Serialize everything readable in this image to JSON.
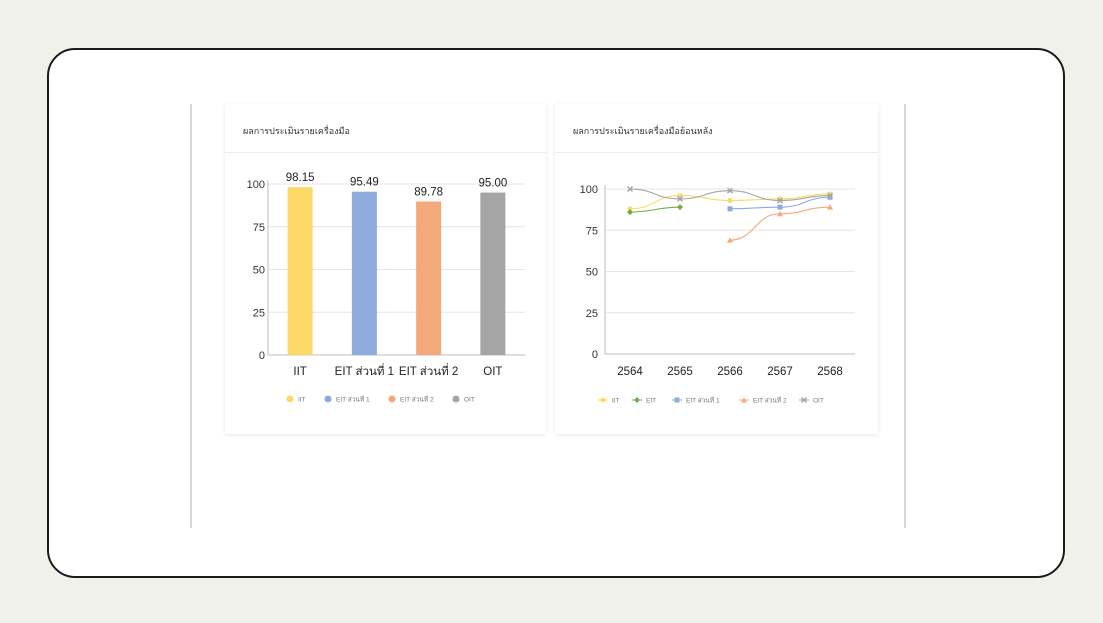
{
  "card1": {
    "title": "ผลการประเมินรายเครื่องมือ"
  },
  "card2": {
    "title": "ผลการประเมินรายเครื่องมือย้อนหลัง"
  },
  "chart_data": [
    {
      "type": "bar",
      "title": "ผลการประเมินรายเครื่องมือ",
      "categories": [
        "IIT",
        "EIT ส่วนที่ 1",
        "EIT ส่วนที่ 2",
        "OIT"
      ],
      "values": [
        98.15,
        95.49,
        89.78,
        95.0
      ],
      "data_labels": [
        "98.15",
        "95.49",
        "89.78",
        "95.00"
      ],
      "colors": [
        "#fdd966",
        "#8faadc",
        "#f4a97a",
        "#a5a5a5"
      ],
      "legend": [
        "IIT",
        "EIT ส่วนที่ 1",
        "EIT ส่วนที่ 2",
        "OIT"
      ],
      "legend_position": "bottom",
      "yticks": [
        "0",
        "25",
        "50",
        "75",
        "100"
      ],
      "ylim": [
        0,
        100
      ],
      "grid": true
    },
    {
      "type": "line",
      "title": "ผลการประเมินรายเครื่องมือย้อนหลัง",
      "x": [
        "2564",
        "2565",
        "2566",
        "2567",
        "2568"
      ],
      "yticks": [
        "0",
        "25",
        "50",
        "75",
        "100"
      ],
      "ylim": [
        0,
        100
      ],
      "grid": true,
      "legend_position": "bottom",
      "series": [
        {
          "name": "IIT",
          "color": "#fdd966",
          "marker": "circle",
          "values": [
            88,
            96,
            93,
            94,
            97
          ]
        },
        {
          "name": "EIT",
          "color": "#70ad47",
          "marker": "diamond",
          "values": [
            86,
            89,
            null,
            null,
            null
          ]
        },
        {
          "name": "EIT ส่วนที่ 1",
          "color": "#8faadc",
          "marker": "square",
          "values": [
            null,
            null,
            88,
            89,
            95
          ]
        },
        {
          "name": "EIT ส่วนที่ 2",
          "color": "#f4a97a",
          "marker": "triangle",
          "values": [
            null,
            null,
            69,
            85,
            89
          ]
        },
        {
          "name": "OIT",
          "color": "#a5a5a5",
          "marker": "cross",
          "values": [
            100,
            94,
            99,
            93,
            96
          ]
        }
      ]
    }
  ]
}
